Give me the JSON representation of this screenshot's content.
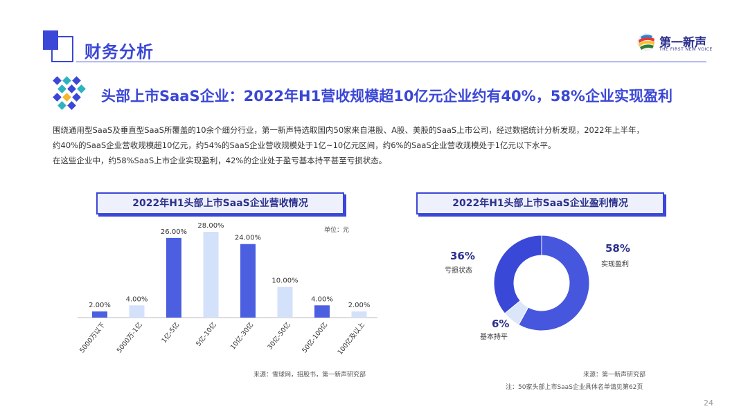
{
  "header": {
    "section_title": "财务分析",
    "logo": {
      "name": "第一新声",
      "tagline": "THE FIRST NEW VOICE"
    }
  },
  "headline": "头部上市SaaS企业：2022年H1营收规模超10亿元企业约有40%，58%企业实现盈利",
  "body": {
    "line1": "围绕通用型SaaS及垂直型SaaS所覆盖的10余个细分行业，第一新声特选取国内50家来自港股、A股、美股的SaaS上市公司，经过数据统计分析发现，2022年上半年，",
    "line2": "约40%的SaaS企业营收规模超10亿元，约54%的SaaS企业营收规模处于1亿~10亿元区间，约6%的SaaS企业营收规模处于1亿元以下水平。",
    "line3": "在这些企业中，约58%SaaS上市企业实现盈利，42%的企业处于盈亏基本持平甚至亏损状态。"
  },
  "colors": {
    "accent": "#3b47d6",
    "bar_dark": "#4c5fe0",
    "bar_light": "#d3e1fb",
    "pie_dark": "#4656dd",
    "pie_mid": "#3a48d8",
    "pie_light": "#dbe6fb"
  },
  "footer": {
    "source_left": "来源：雪球网，招股书，第一新声研究部",
    "source_right": "来源：第一新声研究部",
    "note": "注：50家头部上市SaaS企业具体名单请见第62页",
    "page_number": "24"
  },
  "chart_data": [
    {
      "type": "bar",
      "title": "2022年H1头部上市SaaS企业营收情况",
      "unit": "单位：元",
      "categories": [
        "5000万以下",
        "5000万-1亿",
        "1亿-5亿",
        "5亿-10亿",
        "10亿-30亿",
        "30亿-50亿",
        "50亿-100亿",
        "100亿及以上"
      ],
      "values": [
        2,
        4,
        26,
        28,
        24,
        10,
        4,
        2
      ],
      "labels": [
        "2.00%",
        "4.00%",
        "26.00%",
        "28.00%",
        "24.00%",
        "10.00%",
        "4.00%",
        "2.00%"
      ],
      "bar_styles": [
        "dark",
        "light",
        "dark",
        "light",
        "dark",
        "light",
        "dark",
        "light"
      ],
      "ylim": [
        0,
        28
      ]
    },
    {
      "type": "pie",
      "title": "2022年H1头部上市SaaS企业盈利情况",
      "slices": [
        {
          "name": "实现盈利",
          "value": 58,
          "label": "58%",
          "style": "pie_dark"
        },
        {
          "name": "基本持平",
          "value": 6,
          "label": "6%",
          "style": "pie_light"
        },
        {
          "name": "亏损状态",
          "value": 36,
          "label": "36%",
          "style": "pie_mid"
        }
      ]
    }
  ]
}
